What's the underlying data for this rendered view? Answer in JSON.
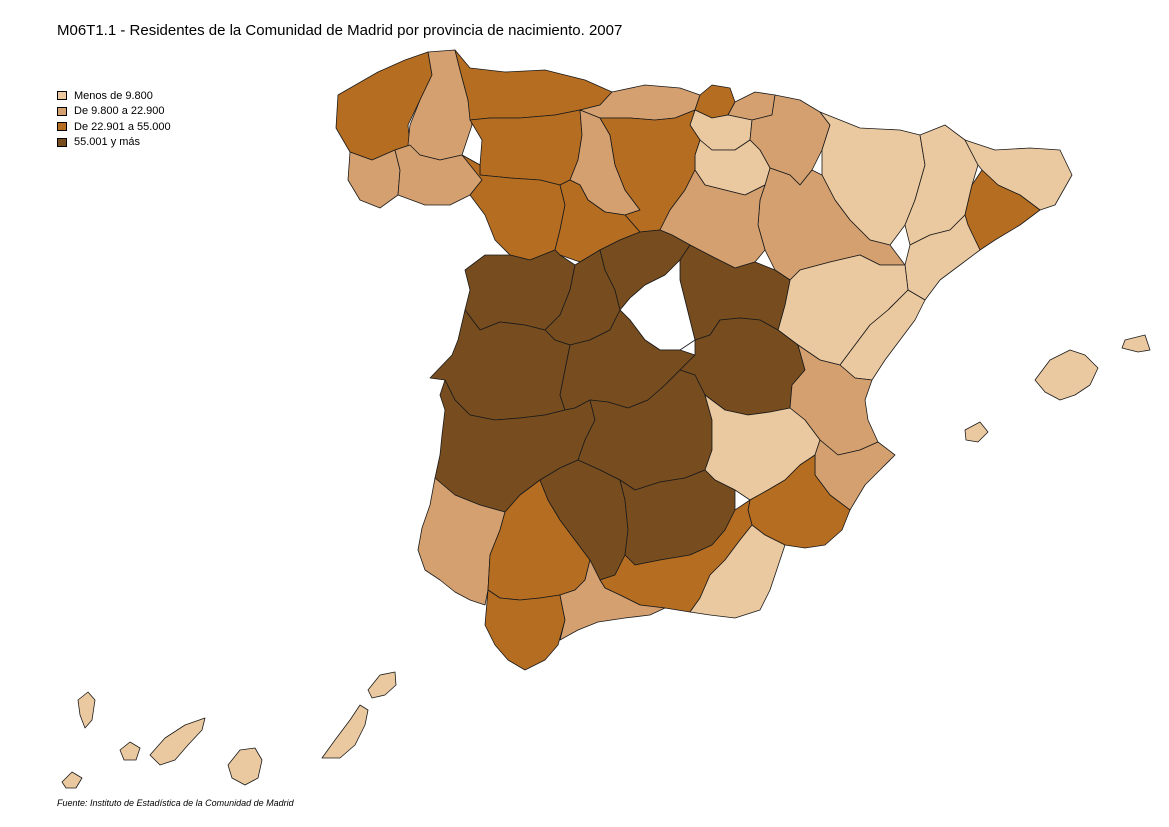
{
  "title": "M06T1.1 - Residentes de la Comunidad de Madrid por provincia de nacimiento. 2007",
  "source": "Fuente: Instituto de Estadística de la Comunidad de Madrid",
  "legend": [
    {
      "label": "Menos de 9.800",
      "color": "#EBC9A0"
    },
    {
      "label": "De 9.800 a 22.900",
      "color": "#D4A070"
    },
    {
      "label": "De 22.901 a 55.000",
      "color": "#B56D22"
    },
    {
      "label": "55.001 y más",
      "color": "#774D1F"
    }
  ],
  "provinces": [
    {
      "id": "coruna",
      "class": 2
    },
    {
      "id": "lugo",
      "class": 1
    },
    {
      "id": "pontevedra",
      "class": 1
    },
    {
      "id": "ourense",
      "class": 1
    },
    {
      "id": "asturias",
      "class": 2
    },
    {
      "id": "cantabria",
      "class": 1
    },
    {
      "id": "bizkaia",
      "class": 2
    },
    {
      "id": "gipuzkoa",
      "class": 1
    },
    {
      "id": "araba",
      "class": 0
    },
    {
      "id": "navarra",
      "class": 1
    },
    {
      "id": "huesca",
      "class": 0
    },
    {
      "id": "lleida",
      "class": 0
    },
    {
      "id": "girona",
      "class": 0
    },
    {
      "id": "barcelona",
      "class": 2
    },
    {
      "id": "tarragona",
      "class": 0
    },
    {
      "id": "zaragoza",
      "class": 1
    },
    {
      "id": "teruel",
      "class": 0
    },
    {
      "id": "larioja",
      "class": 0
    },
    {
      "id": "leon",
      "class": 2
    },
    {
      "id": "palencia",
      "class": 1
    },
    {
      "id": "burgos",
      "class": 2
    },
    {
      "id": "zamora",
      "class": 2
    },
    {
      "id": "valladolid",
      "class": 2
    },
    {
      "id": "soria",
      "class": 1
    },
    {
      "id": "salamanca",
      "class": 3
    },
    {
      "id": "avila",
      "class": 3
    },
    {
      "id": "segovia",
      "class": 3
    },
    {
      "id": "guadalajara",
      "class": 3
    },
    {
      "id": "caceres",
      "class": 3
    },
    {
      "id": "toledo",
      "class": 3
    },
    {
      "id": "cuenca",
      "class": 3
    },
    {
      "id": "castellon",
      "class": 0
    },
    {
      "id": "valencia",
      "class": 1
    },
    {
      "id": "badajoz",
      "class": 3
    },
    {
      "id": "ciudadreal",
      "class": 3
    },
    {
      "id": "albacete",
      "class": 0
    },
    {
      "id": "alicante",
      "class": 1
    },
    {
      "id": "murcia",
      "class": 2
    },
    {
      "id": "huelva",
      "class": 1
    },
    {
      "id": "sevilla",
      "class": 2
    },
    {
      "id": "cordoba",
      "class": 3
    },
    {
      "id": "jaen",
      "class": 3
    },
    {
      "id": "granada",
      "class": 2
    },
    {
      "id": "almeria",
      "class": 0
    },
    {
      "id": "cadiz",
      "class": 2
    },
    {
      "id": "malaga",
      "class": 1
    },
    {
      "id": "baleares",
      "class": 0
    },
    {
      "id": "lanzarote",
      "class": 0
    },
    {
      "id": "fuerteventura",
      "class": 0
    },
    {
      "id": "grancanaria",
      "class": 0
    },
    {
      "id": "tenerife",
      "class": 0
    },
    {
      "id": "lagomera",
      "class": 0
    },
    {
      "id": "lapalma",
      "class": 0
    },
    {
      "id": "elhierro",
      "class": 0
    }
  ]
}
